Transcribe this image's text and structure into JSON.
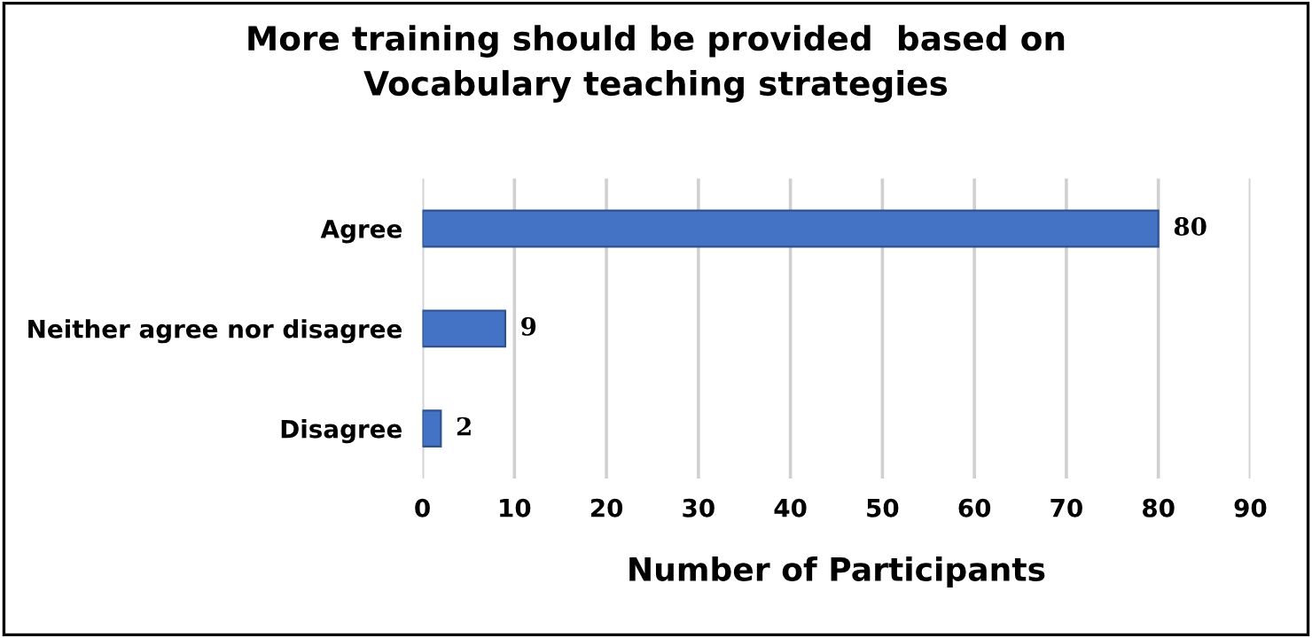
{
  "chart_data": {
    "type": "bar",
    "orientation": "horizontal",
    "title": "More training should be provided  based on\nVocabulary teaching strategies",
    "xlabel": "Number of Participants",
    "categories": [
      "Agree",
      "Neither agree nor disagree",
      "Disagree"
    ],
    "values": [
      80,
      9,
      2
    ],
    "color": "#4472c4",
    "xlim": [
      0,
      90
    ],
    "xticks": [
      0,
      10,
      20,
      30,
      40,
      50,
      60,
      70,
      80,
      90
    ],
    "grid": "x",
    "data_labels": true
  }
}
